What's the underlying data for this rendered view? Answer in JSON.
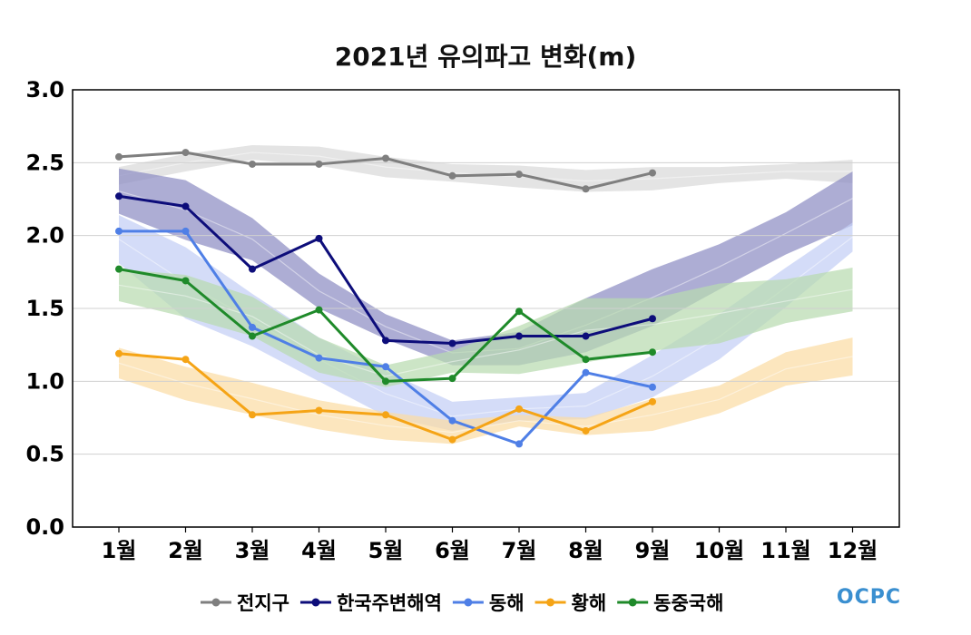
{
  "chart_data": {
    "type": "line",
    "title": "2021년 유의파고 변화(m)",
    "x_labels": [
      "1월",
      "2월",
      "3월",
      "4월",
      "5월",
      "6월",
      "7월",
      "8월",
      "9월",
      "10월",
      "11월",
      "12월"
    ],
    "ylim": [
      0.0,
      3.0
    ],
    "y_ticks": [
      "0.0",
      "0.5",
      "1.0",
      "1.5",
      "2.0",
      "2.5",
      "3.0"
    ],
    "grid": true,
    "legend_position": "bottom",
    "series": [
      {
        "name": "전지구",
        "color": "#7f7f7f",
        "band_color": "#d9d9d9",
        "values": [
          2.54,
          2.57,
          2.49,
          2.49,
          2.53,
          2.41,
          2.42,
          2.32,
          2.43
        ],
        "band_upper": [
          2.47,
          2.56,
          2.62,
          2.61,
          2.54,
          2.49,
          2.48,
          2.45,
          2.47,
          2.47,
          2.49,
          2.52
        ],
        "band_lower": [
          2.35,
          2.44,
          2.52,
          2.48,
          2.4,
          2.37,
          2.33,
          2.3,
          2.31,
          2.36,
          2.39,
          2.36
        ]
      },
      {
        "name": "한국주변해역",
        "color": "#0d0d7a",
        "band_color": "#8e8ec4",
        "values": [
          2.27,
          2.2,
          1.77,
          1.98,
          1.28,
          1.26,
          1.31,
          1.31,
          1.43
        ],
        "band_upper": [
          2.46,
          2.38,
          2.12,
          1.74,
          1.46,
          1.28,
          1.34,
          1.57,
          1.77,
          1.94,
          2.16,
          2.44
        ],
        "band_lower": [
          2.15,
          1.97,
          1.83,
          1.5,
          1.29,
          1.11,
          1.11,
          1.2,
          1.38,
          1.63,
          1.87,
          2.07
        ]
      },
      {
        "name": "동해",
        "color": "#4f7fe6",
        "band_color": "#c3cef5",
        "values": [
          2.03,
          2.03,
          1.37,
          1.16,
          1.1,
          0.73,
          0.57,
          1.06,
          0.96
        ],
        "band_upper": [
          2.14,
          1.92,
          1.6,
          1.3,
          1.07,
          0.86,
          0.89,
          0.92,
          1.18,
          1.46,
          1.78,
          2.09
        ],
        "band_lower": [
          1.81,
          1.43,
          1.24,
          1.0,
          0.76,
          0.66,
          0.73,
          0.74,
          0.89,
          1.15,
          1.51,
          1.89
        ]
      },
      {
        "name": "황해",
        "color": "#f5a416",
        "band_color": "#fbdca5",
        "values": [
          1.19,
          1.15,
          0.77,
          0.8,
          0.77,
          0.6,
          0.81,
          0.66,
          0.86
        ],
        "band_upper": [
          1.23,
          1.1,
          0.99,
          0.87,
          0.79,
          0.73,
          0.77,
          0.75,
          0.88,
          0.97,
          1.2,
          1.3
        ],
        "band_lower": [
          1.02,
          0.87,
          0.77,
          0.67,
          0.6,
          0.57,
          0.69,
          0.63,
          0.66,
          0.78,
          0.97,
          1.04
        ]
      },
      {
        "name": "동중국해",
        "color": "#1f8a2a",
        "band_color": "#b9dbb0",
        "values": [
          1.77,
          1.69,
          1.31,
          1.49,
          1.0,
          1.02,
          1.48,
          1.15,
          1.2
        ],
        "band_upper": [
          1.77,
          1.73,
          1.58,
          1.3,
          1.11,
          1.21,
          1.38,
          1.57,
          1.57,
          1.67,
          1.7,
          1.78
        ],
        "band_lower": [
          1.55,
          1.44,
          1.31,
          1.06,
          0.96,
          1.06,
          1.05,
          1.13,
          1.21,
          1.26,
          1.4,
          1.48
        ]
      }
    ]
  },
  "logo_text": "OCPC"
}
